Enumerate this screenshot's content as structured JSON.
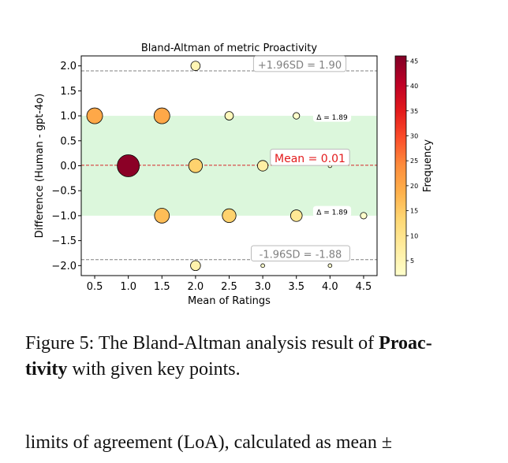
{
  "chart_data": {
    "type": "scatter",
    "title": "Bland-Altman of metric Proactivity",
    "xlabel": "Mean of Ratings",
    "ylabel": "Difference (Human - gpt-4o)",
    "xlim": [
      0.3,
      4.7
    ],
    "ylim": [
      -2.2,
      2.2
    ],
    "xticks": [
      "0.5",
      "1.0",
      "1.5",
      "2.0",
      "2.5",
      "3.0",
      "3.5",
      "4.0",
      "4.5"
    ],
    "yticks": [
      "2.0",
      "1.5",
      "1.0",
      "0.5",
      "0.0",
      "−0.5",
      "−1.0",
      "−1.5",
      "−2.0"
    ],
    "points": [
      {
        "x": 0.5,
        "y": 1.0,
        "freq": 20
      },
      {
        "x": 1.5,
        "y": 1.0,
        "freq": 20
      },
      {
        "x": 2.0,
        "y": 2.0,
        "freq": 5
      },
      {
        "x": 2.5,
        "y": 1.0,
        "freq": 4
      },
      {
        "x": 3.5,
        "y": 1.0,
        "freq": 2
      },
      {
        "x": 1.0,
        "y": 0.0,
        "freq": 45
      },
      {
        "x": 2.0,
        "y": 0.0,
        "freq": 14
      },
      {
        "x": 3.0,
        "y": 0.0,
        "freq": 7
      },
      {
        "x": 4.0,
        "y": 0.0,
        "freq": 1
      },
      {
        "x": 1.5,
        "y": -1.0,
        "freq": 17
      },
      {
        "x": 2.5,
        "y": -1.0,
        "freq": 14
      },
      {
        "x": 3.5,
        "y": -1.0,
        "freq": 9
      },
      {
        "x": 4.5,
        "y": -1.0,
        "freq": 2
      },
      {
        "x": 2.0,
        "y": -2.0,
        "freq": 6
      },
      {
        "x": 3.0,
        "y": -2.0,
        "freq": 1
      },
      {
        "x": 4.0,
        "y": -2.0,
        "freq": 1
      }
    ],
    "mean": 0.01,
    "upper_loa": 1.9,
    "lower_loa": -1.88,
    "shaded_band": [
      -1.0,
      1.0
    ],
    "annotations": {
      "mean": "Mean = 0.01",
      "upper": "+1.96SD = 1.90",
      "lower": "-1.96SD = -1.88",
      "delta_upper": "Δ = 1.89",
      "delta_lower": "Δ = 1.89"
    },
    "colorbar": {
      "label": "Frequency",
      "range": [
        2,
        46
      ],
      "ticks": [
        "45",
        "40",
        "35",
        "30",
        "25",
        "20",
        "15",
        "10",
        "5"
      ],
      "cmap": [
        "#ffffcc",
        "#ffeda0",
        "#fed976",
        "#feb24c",
        "#fd8d3c",
        "#fc4e2a",
        "#e31a1c",
        "#bd0026",
        "#800026"
      ]
    },
    "grid": false
  },
  "caption": {
    "prefix": "Figure 5: The Bland-Altman analysis result of ",
    "bold1": "Proac-",
    "bold2": "tivity",
    "suffix": " with given key points."
  },
  "body_text": "limits of agreement (LoA), calculated as mean ±"
}
